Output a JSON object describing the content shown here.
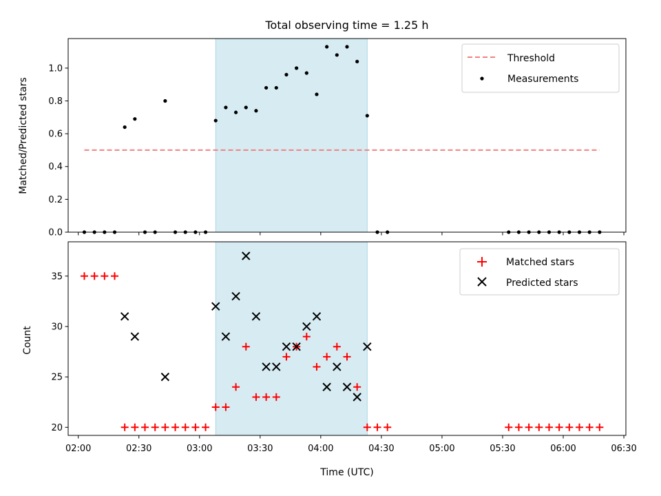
{
  "chart_data": {
    "title": "Total observing time = 1.25 h",
    "xlabel": "Time (UTC)",
    "x_unit": "minutes after 00:00 UTC",
    "xlim": [
      115,
      391
    ],
    "x_ticks": [
      {
        "value": 120,
        "label": "02:00"
      },
      {
        "value": 150,
        "label": "02:30"
      },
      {
        "value": 180,
        "label": "03:00"
      },
      {
        "value": 210,
        "label": "03:30"
      },
      {
        "value": 240,
        "label": "04:00"
      },
      {
        "value": 270,
        "label": "04:30"
      },
      {
        "value": 300,
        "label": "05:00"
      },
      {
        "value": 330,
        "label": "05:30"
      },
      {
        "value": 360,
        "label": "06:00"
      },
      {
        "value": 390,
        "label": "06:30"
      }
    ],
    "shaded_span": {
      "from": 188,
      "to": 263,
      "color": "#add8e6"
    },
    "panels": [
      {
        "type": "scatter",
        "ylabel": "Matched/Predicted stars",
        "ylim": [
          0,
          1.18
        ],
        "y_ticks": [
          {
            "value": 0,
            "label": "0.0"
          },
          {
            "value": 0.2,
            "label": "0.2"
          },
          {
            "value": 0.4,
            "label": "0.4"
          },
          {
            "value": 0.6,
            "label": "0.6"
          },
          {
            "value": 0.8,
            "label": "0.8"
          },
          {
            "value": 1.0,
            "label": "1.0"
          }
        ],
        "legend_position": "top-right",
        "threshold": {
          "name": "Threshold",
          "value": 0.5,
          "x": [
            123,
            378
          ],
          "color": "#f08080"
        },
        "series": [
          {
            "name": "Measurements",
            "marker": "dot",
            "color": "#000000",
            "points": [
              [
                123,
                0
              ],
              [
                128,
                0
              ],
              [
                133,
                0
              ],
              [
                138,
                0
              ],
              [
                143,
                0.64
              ],
              [
                148,
                0.69
              ],
              [
                153,
                0
              ],
              [
                158,
                0
              ],
              [
                163,
                0.8
              ],
              [
                168,
                0
              ],
              [
                173,
                0
              ],
              [
                178,
                0
              ],
              [
                183,
                0
              ],
              [
                188,
                0.68
              ],
              [
                193,
                0.76
              ],
              [
                198,
                0.73
              ],
              [
                203,
                0.76
              ],
              [
                208,
                0.74
              ],
              [
                213,
                0.88
              ],
              [
                218,
                0.88
              ],
              [
                223,
                0.96
              ],
              [
                228,
                1.0
              ],
              [
                233,
                0.97
              ],
              [
                238,
                0.84
              ],
              [
                243,
                1.13
              ],
              [
                248,
                1.08
              ],
              [
                253,
                1.13
              ],
              [
                258,
                1.04
              ],
              [
                263,
                0.71
              ],
              [
                268,
                0
              ],
              [
                273,
                0
              ],
              [
                333,
                0
              ],
              [
                338,
                0
              ],
              [
                343,
                0
              ],
              [
                348,
                0
              ],
              [
                353,
                0
              ],
              [
                358,
                0
              ],
              [
                363,
                0
              ],
              [
                368,
                0
              ],
              [
                373,
                0
              ],
              [
                378,
                0
              ]
            ]
          }
        ]
      },
      {
        "type": "scatter",
        "ylabel": "Count",
        "ylim": [
          19.2,
          38.4
        ],
        "y_ticks": [
          {
            "value": 20,
            "label": "20"
          },
          {
            "value": 25,
            "label": "25"
          },
          {
            "value": 30,
            "label": "30"
          },
          {
            "value": 35,
            "label": "35"
          }
        ],
        "legend_position": "top-right",
        "series": [
          {
            "name": "Matched stars",
            "marker": "plus",
            "color": "#ff0000",
            "points": [
              [
                123,
                35
              ],
              [
                128,
                35
              ],
              [
                133,
                35
              ],
              [
                138,
                35
              ],
              [
                143,
                20
              ],
              [
                148,
                20
              ],
              [
                153,
                20
              ],
              [
                158,
                20
              ],
              [
                163,
                20
              ],
              [
                168,
                20
              ],
              [
                173,
                20
              ],
              [
                178,
                20
              ],
              [
                183,
                20
              ],
              [
                188,
                22
              ],
              [
                193,
                22
              ],
              [
                198,
                24
              ],
              [
                203,
                28
              ],
              [
                208,
                23
              ],
              [
                213,
                23
              ],
              [
                218,
                23
              ],
              [
                223,
                27
              ],
              [
                228,
                28
              ],
              [
                233,
                29
              ],
              [
                238,
                26
              ],
              [
                243,
                27
              ],
              [
                248,
                28
              ],
              [
                253,
                27
              ],
              [
                258,
                24
              ],
              [
                263,
                20
              ],
              [
                268,
                20
              ],
              [
                273,
                20
              ],
              [
                333,
                20
              ],
              [
                338,
                20
              ],
              [
                343,
                20
              ],
              [
                348,
                20
              ],
              [
                353,
                20
              ],
              [
                358,
                20
              ],
              [
                363,
                20
              ],
              [
                368,
                20
              ],
              [
                373,
                20
              ],
              [
                378,
                20
              ]
            ]
          },
          {
            "name": "Predicted stars",
            "marker": "x",
            "color": "#000000",
            "points": [
              [
                143,
                31
              ],
              [
                148,
                29
              ],
              [
                163,
                25
              ],
              [
                188,
                32
              ],
              [
                193,
                29
              ],
              [
                198,
                33
              ],
              [
                203,
                37
              ],
              [
                208,
                31
              ],
              [
                213,
                26
              ],
              [
                218,
                26
              ],
              [
                223,
                28
              ],
              [
                228,
                28
              ],
              [
                233,
                30
              ],
              [
                238,
                31
              ],
              [
                243,
                24
              ],
              [
                248,
                26
              ],
              [
                253,
                24
              ],
              [
                258,
                23
              ],
              [
                263,
                28
              ]
            ]
          }
        ]
      }
    ]
  }
}
